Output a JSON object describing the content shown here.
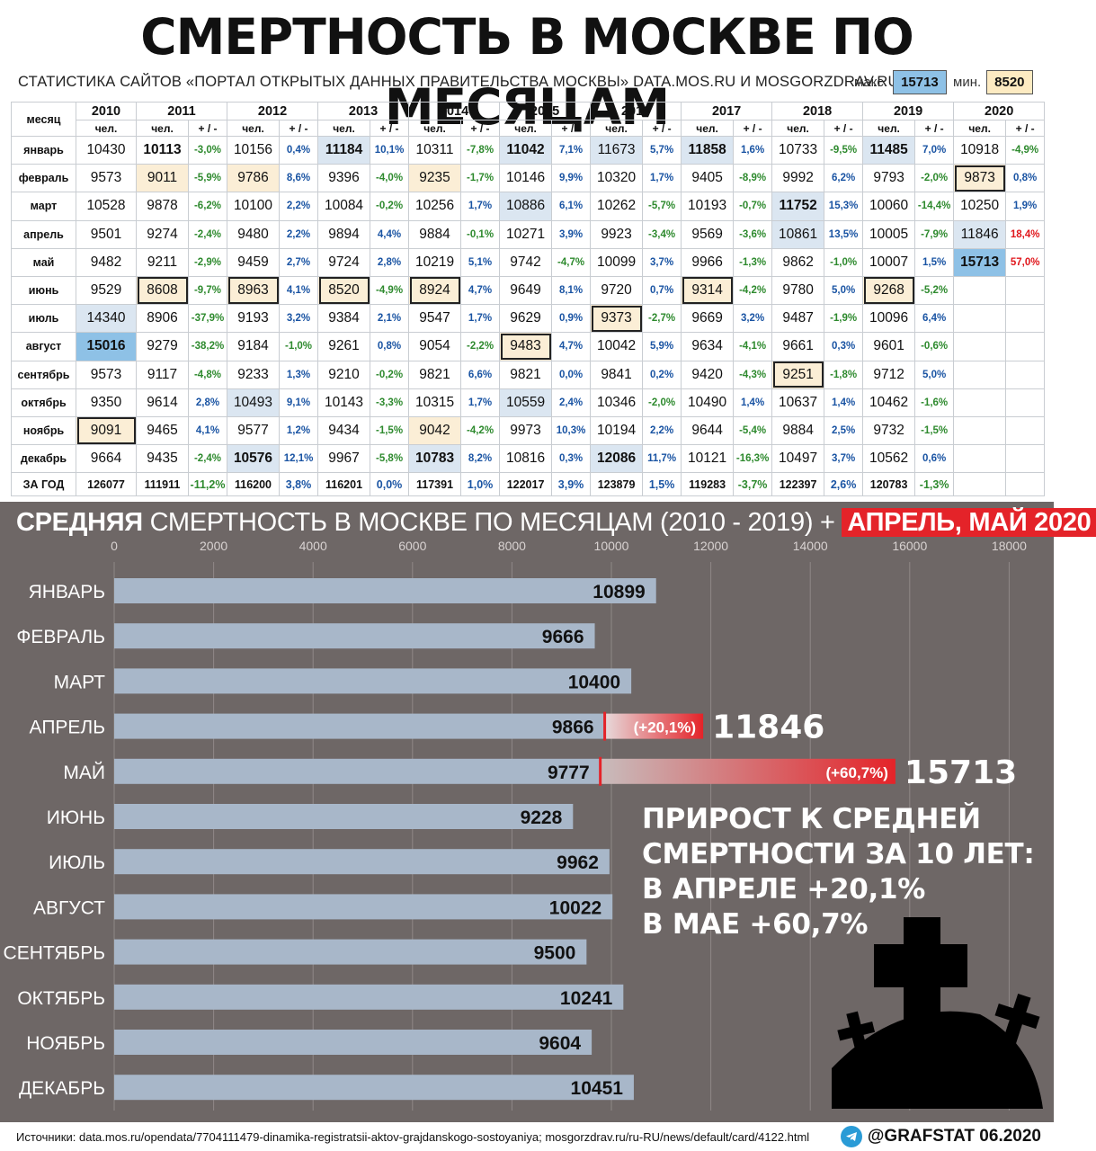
{
  "title": "СМЕРТНОСТЬ В МОСКВЕ ПО МЕСЯЦАМ",
  "subtitle": "СТАТИСТИКА САЙТОВ «ПОРТАЛ ОТКРЫТЫХ ДАННЫХ ПРАВИТЕЛЬСТВА МОСКВЫ» DATA.MOS.RU И MOSGORZDRAV.RU",
  "range": {
    "max_label": "макс.",
    "max_value": "15713",
    "min_label": "мин.",
    "min_value": "8520"
  },
  "table": {
    "month_header": "месяц",
    "years": [
      "2010",
      "2011",
      "2012",
      "2013",
      "2014",
      "2015",
      "2016",
      "2017",
      "2018",
      "2019",
      "2020"
    ],
    "sub_people": "чел.",
    "sub_change": "+ / -",
    "rows": [
      {
        "month": "январь",
        "cells": [
          [
            "10430",
            ""
          ],
          [
            "10113",
            "-3,0%"
          ],
          [
            "10156",
            "0,4%"
          ],
          [
            "11184",
            "10,1%"
          ],
          [
            "10311",
            "-7,8%"
          ],
          [
            "11042",
            "7,1%"
          ],
          [
            "11673",
            "5,7%"
          ],
          [
            "11858",
            "1,6%"
          ],
          [
            "10733",
            "-9,5%"
          ],
          [
            "11485",
            "7,0%"
          ],
          [
            "10918",
            "-4,9%"
          ]
        ]
      },
      {
        "month": "февраль",
        "cells": [
          [
            "9573",
            ""
          ],
          [
            "9011",
            "-5,9%"
          ],
          [
            "9786",
            "8,6%"
          ],
          [
            "9396",
            "-4,0%"
          ],
          [
            "9235",
            "-1,7%"
          ],
          [
            "10146",
            "9,9%"
          ],
          [
            "10320",
            "1,7%"
          ],
          [
            "9405",
            "-8,9%"
          ],
          [
            "9992",
            "6,2%"
          ],
          [
            "9793",
            "-2,0%"
          ],
          [
            "9873",
            "0,8%"
          ]
        ]
      },
      {
        "month": "март",
        "cells": [
          [
            "10528",
            ""
          ],
          [
            "9878",
            "-6,2%"
          ],
          [
            "10100",
            "2,2%"
          ],
          [
            "10084",
            "-0,2%"
          ],
          [
            "10256",
            "1,7%"
          ],
          [
            "10886",
            "6,1%"
          ],
          [
            "10262",
            "-5,7%"
          ],
          [
            "10193",
            "-0,7%"
          ],
          [
            "11752",
            "15,3%"
          ],
          [
            "10060",
            "-14,4%"
          ],
          [
            "10250",
            "1,9%"
          ]
        ]
      },
      {
        "month": "апрель",
        "cells": [
          [
            "9501",
            ""
          ],
          [
            "9274",
            "-2,4%"
          ],
          [
            "9480",
            "2,2%"
          ],
          [
            "9894",
            "4,4%"
          ],
          [
            "9884",
            "-0,1%"
          ],
          [
            "10271",
            "3,9%"
          ],
          [
            "9923",
            "-3,4%"
          ],
          [
            "9569",
            "-3,6%"
          ],
          [
            "10861",
            "13,5%"
          ],
          [
            "10005",
            "-7,9%"
          ],
          [
            "11846",
            "18,4%"
          ]
        ]
      },
      {
        "month": "май",
        "cells": [
          [
            "9482",
            ""
          ],
          [
            "9211",
            "-2,9%"
          ],
          [
            "9459",
            "2,7%"
          ],
          [
            "9724",
            "2,8%"
          ],
          [
            "10219",
            "5,1%"
          ],
          [
            "9742",
            "-4,7%"
          ],
          [
            "10099",
            "3,7%"
          ],
          [
            "9966",
            "-1,3%"
          ],
          [
            "9862",
            "-1,0%"
          ],
          [
            "10007",
            "1,5%"
          ],
          [
            "15713",
            "57,0%"
          ]
        ]
      },
      {
        "month": "июнь",
        "cells": [
          [
            "9529",
            ""
          ],
          [
            "8608",
            "-9,7%"
          ],
          [
            "8963",
            "4,1%"
          ],
          [
            "8520",
            "-4,9%"
          ],
          [
            "8924",
            "4,7%"
          ],
          [
            "9649",
            "8,1%"
          ],
          [
            "9720",
            "0,7%"
          ],
          [
            "9314",
            "-4,2%"
          ],
          [
            "9780",
            "5,0%"
          ],
          [
            "9268",
            "-5,2%"
          ],
          [
            "",
            ""
          ]
        ]
      },
      {
        "month": "июль",
        "cells": [
          [
            "14340",
            ""
          ],
          [
            "8906",
            "-37,9%"
          ],
          [
            "9193",
            "3,2%"
          ],
          [
            "9384",
            "2,1%"
          ],
          [
            "9547",
            "1,7%"
          ],
          [
            "9629",
            "0,9%"
          ],
          [
            "9373",
            "-2,7%"
          ],
          [
            "9669",
            "3,2%"
          ],
          [
            "9487",
            "-1,9%"
          ],
          [
            "10096",
            "6,4%"
          ],
          [
            "",
            ""
          ]
        ]
      },
      {
        "month": "август",
        "cells": [
          [
            "15016",
            ""
          ],
          [
            "9279",
            "-38,2%"
          ],
          [
            "9184",
            "-1,0%"
          ],
          [
            "9261",
            "0,8%"
          ],
          [
            "9054",
            "-2,2%"
          ],
          [
            "9483",
            "4,7%"
          ],
          [
            "10042",
            "5,9%"
          ],
          [
            "9634",
            "-4,1%"
          ],
          [
            "9661",
            "0,3%"
          ],
          [
            "9601",
            "-0,6%"
          ],
          [
            "",
            ""
          ]
        ]
      },
      {
        "month": "сентябрь",
        "cells": [
          [
            "9573",
            ""
          ],
          [
            "9117",
            "-4,8%"
          ],
          [
            "9233",
            "1,3%"
          ],
          [
            "9210",
            "-0,2%"
          ],
          [
            "9821",
            "6,6%"
          ],
          [
            "9821",
            "0,0%"
          ],
          [
            "9841",
            "0,2%"
          ],
          [
            "9420",
            "-4,3%"
          ],
          [
            "9251",
            "-1,8%"
          ],
          [
            "9712",
            "5,0%"
          ],
          [
            "",
            ""
          ]
        ]
      },
      {
        "month": "октябрь",
        "cells": [
          [
            "9350",
            ""
          ],
          [
            "9614",
            "2,8%"
          ],
          [
            "10493",
            "9,1%"
          ],
          [
            "10143",
            "-3,3%"
          ],
          [
            "10315",
            "1,7%"
          ],
          [
            "10559",
            "2,4%"
          ],
          [
            "10346",
            "-2,0%"
          ],
          [
            "10490",
            "1,4%"
          ],
          [
            "10637",
            "1,4%"
          ],
          [
            "10462",
            "-1,6%"
          ],
          [
            "",
            ""
          ]
        ]
      },
      {
        "month": "ноябрь",
        "cells": [
          [
            "9091",
            ""
          ],
          [
            "9465",
            "4,1%"
          ],
          [
            "9577",
            "1,2%"
          ],
          [
            "9434",
            "-1,5%"
          ],
          [
            "9042",
            "-4,2%"
          ],
          [
            "9973",
            "10,3%"
          ],
          [
            "10194",
            "2,2%"
          ],
          [
            "9644",
            "-5,4%"
          ],
          [
            "9884",
            "2,5%"
          ],
          [
            "9732",
            "-1,5%"
          ],
          [
            "",
            ""
          ]
        ]
      },
      {
        "month": "декабрь",
        "cells": [
          [
            "9664",
            ""
          ],
          [
            "9435",
            "-2,4%"
          ],
          [
            "10576",
            "12,1%"
          ],
          [
            "9967",
            "-5,8%"
          ],
          [
            "10783",
            "8,2%"
          ],
          [
            "10816",
            "0,3%"
          ],
          [
            "12086",
            "11,7%"
          ],
          [
            "10121",
            "-16,3%"
          ],
          [
            "10497",
            "3,7%"
          ],
          [
            "10562",
            "0,6%"
          ],
          [
            "",
            ""
          ]
        ]
      }
    ],
    "total": {
      "label": "ЗА ГОД",
      "cells": [
        [
          "126077",
          ""
        ],
        [
          "111911",
          "-11,2%"
        ],
        [
          "116200",
          "3,8%"
        ],
        [
          "116201",
          "0,0%"
        ],
        [
          "117391",
          "1,0%"
        ],
        [
          "122017",
          "3,9%"
        ],
        [
          "123879",
          "1,5%"
        ],
        [
          "119283",
          "-3,7%"
        ],
        [
          "122397",
          "2,6%"
        ],
        [
          "120783",
          "-1,3%"
        ],
        [
          "",
          ""
        ]
      ]
    }
  },
  "chart_title": {
    "bold": "СРЕДНЯЯ",
    "rest": " СМЕРТНОСТЬ В МОСКВЕ ПО МЕСЯЦАМ (2010 - 2019) + ",
    "highlight": "АПРЕЛЬ, МАЙ 2020"
  },
  "chart_data": {
    "type": "bar",
    "orientation": "horizontal",
    "categories": [
      "ЯНВАРЬ",
      "ФЕВРАЛЬ",
      "МАРТ",
      "АПРЕЛЬ",
      "МАЙ",
      "ИЮНЬ",
      "ИЮЛЬ",
      "АВГУСТ",
      "СЕНТЯБРЬ",
      "ОКТЯБРЬ",
      "НОЯБРЬ",
      "ДЕКАБРЬ"
    ],
    "values": [
      10899,
      9666,
      10400,
      9866,
      9777,
      9228,
      9962,
      10022,
      9500,
      10241,
      9604,
      10451
    ],
    "extra_2020": [
      {
        "category": "АПРЕЛЬ",
        "value": 11846,
        "change_label": "(+20,1%)"
      },
      {
        "category": "МАЙ",
        "value": 15713,
        "change_label": "(+60,7%)"
      }
    ],
    "xticks": [
      0,
      2000,
      4000,
      6000,
      8000,
      10000,
      12000,
      14000,
      16000,
      18000
    ],
    "xlim": [
      0,
      18000
    ],
    "grid": true,
    "colors": {
      "bar": "#a8b7c9",
      "increase": "#e42329",
      "background": "#6e6766"
    }
  },
  "note_lines": [
    "ПРИРОСТ К СРЕДНЕЙ",
    "СМЕРТНОСТИ ЗА 10 ЛЕТ:",
    "В АПРЕЛЕ +20,1%",
    "В МАЕ +60,7%"
  ],
  "footer": {
    "sources": "Источники: data.mos.ru/opendata/7704111479-dinamika-registratsii-aktov-grajdanskogo-sostoyaniya; mosgorzdrav.ru/ru-RU/news/default/card/4122.html",
    "brand": "@GRAFSTAT 06.2020",
    "brand_icon": "telegram-icon"
  }
}
